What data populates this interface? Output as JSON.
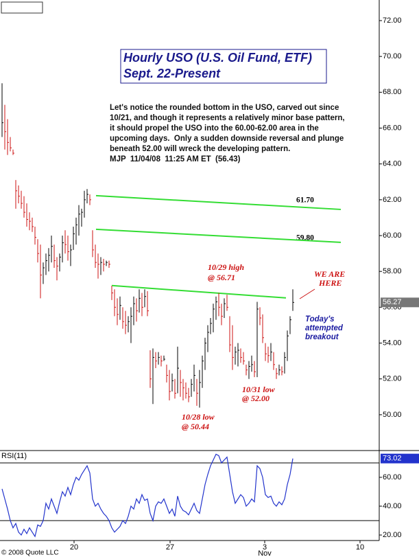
{
  "chart_data": [
    {
      "type": "ohlc",
      "title": "Hourly USO (U.S. Oil Fund, ETF)",
      "subtitle": "Sept. 22-Present",
      "commentary": [
        "Let's notice the rounded bottom in the USO, carved out since",
        "10/21, and though it represents a relatively minor base pattern,",
        "it should propel the USO into the 60.00-62.00 area in the",
        "upcoming days.  Only a sudden downside reversal and plunge",
        "beneath 52.00 will wreck the developing pattern.",
        "MJP  11/04/08  11:25 AM ET  (56.43)"
      ],
      "annotations": [
        "10/29 high",
        "@ 56.71",
        "WE ARE",
        "HERE",
        "Today's",
        "attempted",
        "breakout",
        "10/31 low",
        "@ 52.00",
        "10/28 low",
        "@ 50.44"
      ],
      "level_labels": [
        {
          "value": 61.7,
          "label": "61.70"
        },
        {
          "value": 59.8,
          "label": "59.80"
        }
      ],
      "trendlines": [
        {
          "x": [
            34.25,
            123.5
          ],
          "y": [
            62.23,
            61.46
          ]
        },
        {
          "x": [
            34.25,
            123.5
          ],
          "y": [
            60.35,
            59.62
          ]
        },
        {
          "x": [
            40,
            103.5
          ],
          "y": [
            57.21,
            56.52
          ]
        }
      ],
      "trend_color": "#33dd33",
      "categories": [
        null,
        null,
        null,
        null,
        null,
        null,
        null,
        null,
        null,
        null,
        null,
        null,
        null,
        null,
        null,
        null,
        null,
        null,
        null,
        null,
        null,
        null,
        null,
        null,
        null,
        null,
        null,
        null,
        null,
        null,
        null,
        null,
        null,
        null,
        null,
        null,
        null,
        null,
        null,
        null,
        null,
        null,
        null,
        null,
        null,
        null,
        null,
        null,
        null,
        null,
        null,
        null,
        null,
        null,
        null,
        null,
        null,
        null,
        null,
        null,
        null,
        null,
        null,
        null,
        null,
        null,
        null,
        null,
        null,
        null,
        null,
        null,
        null,
        null,
        null,
        null,
        null,
        null,
        null,
        null,
        null,
        null,
        null,
        null,
        null,
        null,
        null,
        null,
        null,
        null,
        null,
        null,
        null,
        null,
        null,
        null,
        null,
        null,
        null,
        null,
        null,
        null,
        null,
        null,
        null,
        null,
        null
      ],
      "high": [
        68.5,
        67.3,
        66.5,
        65.5,
        64.8,
        63.1,
        62.8,
        62.5,
        62.2,
        61.8,
        61.3,
        61.0,
        60.5,
        59.8,
        59.5,
        58.5,
        59.0,
        59.3,
        60.0,
        59.5,
        58.8,
        59.0,
        60.0,
        60.3,
        60.0,
        59.5,
        60.5,
        61.0,
        61.7,
        61.5,
        62.5,
        62.6,
        62.3,
        60.3,
        59.5,
        59.0,
        58.8,
        58.7,
        58.6,
        58.6,
        57.2,
        57.0,
        56.5,
        56.6,
        56.0,
        55.8,
        55.5,
        56.0,
        56.6,
        56.5,
        57.0,
        56.8,
        57.0,
        56.9,
        53.6,
        53.7,
        53.5,
        53.5,
        53.3,
        53.3,
        52.8,
        52.5,
        52.3,
        52.0,
        53.8,
        52.5,
        52.0,
        51.8,
        51.5,
        52.0,
        52.8,
        52.0,
        52.5,
        53.3,
        54.3,
        55.0,
        55.4,
        56.2,
        56.6,
        56.8,
        56.2,
        56.5,
        56.7,
        55.5,
        55.0,
        53.8,
        54.0,
        53.7,
        53.5,
        52.8,
        53.0,
        53.3,
        53.0,
        56.3,
        56.0,
        55.6,
        54.0,
        53.8,
        54.0,
        53.5,
        52.6,
        52.8,
        52.7,
        53.5,
        54.7,
        55.5,
        57.0
      ],
      "low": [
        65.5,
        64.8,
        64.5,
        64.7,
        64.5,
        61.5,
        61.8,
        61.5,
        61.0,
        60.5,
        60.3,
        60.2,
        59.5,
        58.5,
        56.5,
        57.3,
        57.8,
        58.0,
        58.5,
        58.2,
        57.5,
        58.0,
        58.5,
        59.0,
        58.6,
        58.3,
        59.2,
        59.5,
        60.0,
        60.5,
        61.0,
        61.8,
        61.7,
        58.8,
        58.2,
        57.6,
        57.8,
        58.0,
        58.3,
        58.2,
        56.4,
        55.5,
        55.0,
        55.3,
        54.8,
        54.5,
        54.6,
        54.0,
        55.0,
        55.2,
        55.7,
        55.5,
        56.0,
        55.5,
        51.5,
        50.6,
        52.6,
        52.8,
        52.7,
        53.0,
        51.8,
        50.8,
        51.3,
        50.9,
        51.2,
        51.0,
        50.8,
        50.9,
        50.7,
        51.0,
        51.3,
        50.5,
        50.4,
        51.5,
        52.5,
        53.5,
        54.5,
        54.6,
        55.3,
        55.5,
        55.0,
        55.4,
        55.8,
        53.5,
        52.5,
        52.8,
        52.7,
        52.9,
        52.8,
        52.2,
        52.0,
        52.4,
        52.1,
        52.1,
        55.0,
        54.0,
        53.0,
        52.9,
        53.0,
        52.5,
        52.0,
        52.2,
        52.2,
        52.3,
        53.0,
        54.5,
        55.8
      ],
      "close": [
        66.3,
        65.8,
        65.2,
        64.9,
        64.6,
        62.5,
        62.2,
        61.8,
        61.3,
        60.9,
        60.8,
        60.5,
        59.9,
        59.0,
        57.8,
        58.2,
        58.6,
        58.9,
        59.4,
        58.6,
        58.3,
        58.8,
        59.6,
        59.5,
        59.1,
        59.2,
        60.1,
        60.6,
        61.2,
        61.3,
        62.0,
        62.3,
        62.0,
        59.2,
        58.5,
        58.4,
        58.5,
        58.4,
        58.5,
        58.4,
        56.8,
        56.0,
        55.6,
        56.1,
        55.2,
        55.0,
        55.2,
        55.5,
        56.2,
        55.8,
        56.5,
        56.0,
        56.6,
        55.8,
        52.0,
        53.2,
        53.0,
        53.2,
        53.0,
        53.1,
        52.2,
        51.3,
        51.9,
        51.2,
        52.6,
        51.8,
        51.5,
        51.2,
        51.0,
        51.7,
        52.2,
        51.2,
        51.8,
        53.0,
        54.0,
        54.6,
        55.1,
        55.9,
        56.3,
        56.0,
        55.5,
        56.2,
        56.0,
        53.9,
        53.2,
        53.5,
        53.6,
        53.2,
        53.0,
        52.5,
        52.7,
        52.8,
        52.4,
        55.9,
        55.4,
        54.3,
        53.4,
        53.3,
        53.5,
        52.8,
        52.3,
        52.5,
        52.4,
        53.2,
        54.4,
        55.3,
        56.27
      ],
      "up_color": "#000000",
      "down_color": "#cc1111",
      "last_label": "56.27",
      "xlim": [
        -0.75,
        137.5
      ],
      "xticks": [
        {
          "value": 26.25,
          "label": "20"
        },
        {
          "value": 61.25,
          "label": "27"
        },
        {
          "value": 95.75,
          "label": "3"
        },
        {
          "value": 130.5,
          "label": "10"
        }
      ],
      "month_label": "Nov",
      "ylim": [
        48.04,
        73.15
      ],
      "yticks": [
        {
          "value": 50,
          "label": "50.00"
        },
        {
          "value": 52,
          "label": "52.00"
        },
        {
          "value": 54,
          "label": "54.00"
        },
        {
          "value": 56,
          "label": "56.00"
        },
        {
          "value": 58,
          "label": "58.00"
        },
        {
          "value": 60,
          "label": "60.00"
        },
        {
          "value": 62,
          "label": "62.00"
        },
        {
          "value": 64,
          "label": "64.00"
        },
        {
          "value": 66,
          "label": "66.00"
        },
        {
          "value": 68,
          "label": "68.00"
        },
        {
          "value": 70,
          "label": "70.00"
        },
        {
          "value": 72,
          "label": "72.00"
        }
      ],
      "copyright": "© 2008 Quote LLC"
    },
    {
      "type": "line",
      "name": "RSI(11)",
      "color": "#2233cc",
      "values": [
        52,
        45,
        38,
        30,
        25,
        28,
        22,
        20,
        24,
        21,
        25,
        22,
        19,
        27,
        26,
        30,
        42,
        38,
        45,
        40,
        35,
        43,
        50,
        47,
        53,
        48,
        55,
        60,
        58,
        62,
        65,
        68,
        63,
        45,
        40,
        42,
        38,
        35,
        33,
        30,
        25,
        22,
        24,
        26,
        30,
        28,
        33,
        40,
        38,
        45,
        42,
        48,
        44,
        45,
        35,
        30,
        40,
        43,
        42,
        45,
        40,
        35,
        38,
        33,
        47,
        40,
        37,
        36,
        34,
        38,
        42,
        37,
        35,
        45,
        55,
        62,
        68,
        72,
        76,
        75,
        70,
        72,
        74,
        62,
        50,
        42,
        45,
        48,
        46,
        40,
        42,
        45,
        43,
        68,
        66,
        60,
        48,
        46,
        47,
        42,
        40,
        43,
        41,
        45,
        55,
        62,
        73.02
      ],
      "last_label": "73.02",
      "levels": [
        30,
        70
      ],
      "ylim": [
        16.2,
        77.6
      ],
      "yticks": [
        {
          "value": 20,
          "label": "20.00"
        },
        {
          "value": 40,
          "label": "40.00"
        },
        {
          "value": 60,
          "label": "60.00"
        }
      ]
    }
  ]
}
